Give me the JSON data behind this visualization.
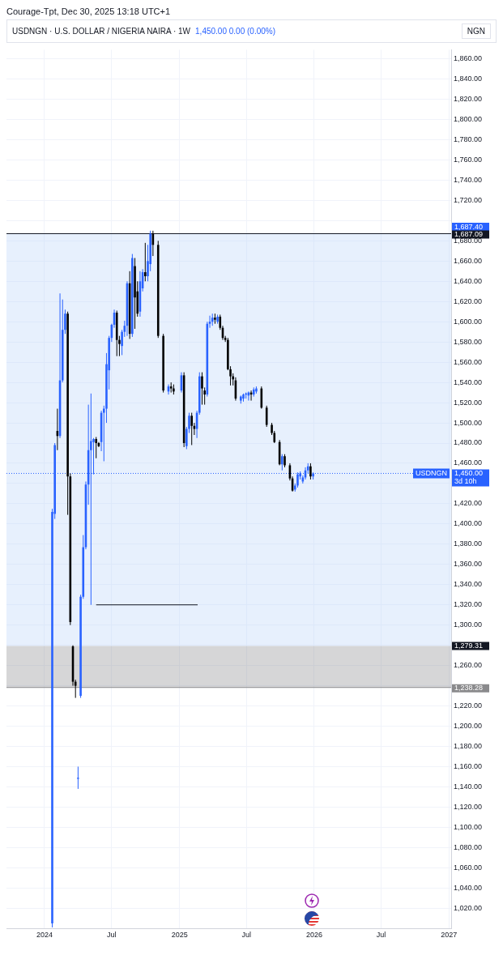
{
  "chart_data": {
    "type": "candlestick",
    "title": "USDNGN · U.S. DOLLAR / NIGERIA NAIRA · 1W",
    "subtitle": "1,450.00  0.00 (0.00%)",
    "ylabel": "NGN",
    "annotations": [
      "Courage-Tpt, Dec 30, 2025 13:18 UTC+1",
      "1,450.00",
      "3d 10h"
    ],
    "x": [
      "2024-01-22",
      "2024-01-29",
      "2024-02-05",
      "2024-02-12",
      "2024-02-19",
      "2024-02-26",
      "2024-03-04",
      "2024-03-11",
      "2024-03-18",
      "2024-03-25",
      "2024-04-01",
      "2024-04-08",
      "2024-04-15",
      "2024-04-22",
      "2024-04-29",
      "2024-05-06",
      "2024-05-13",
      "2024-05-20",
      "2024-05-27",
      "2024-06-03",
      "2024-06-10",
      "2024-06-17",
      "2024-06-24",
      "2024-07-01",
      "2024-07-08",
      "2024-07-15",
      "2024-07-22",
      "2024-07-29",
      "2024-08-05",
      "2024-08-12",
      "2024-08-19",
      "2024-08-26",
      "2024-09-02",
      "2024-09-09",
      "2024-09-16",
      "2024-09-23",
      "2024-09-30",
      "2024-10-07",
      "2024-10-14",
      "2024-10-21",
      "2024-11-04",
      "2024-11-18",
      "2024-12-02",
      "2024-12-09",
      "2024-12-16",
      "2025-01-06",
      "2025-01-13",
      "2025-01-20",
      "2025-01-27",
      "2025-02-03",
      "2025-02-10",
      "2025-02-17",
      "2025-02-24",
      "2025-03-03",
      "2025-03-10",
      "2025-03-17",
      "2025-03-24",
      "2025-03-31",
      "2025-04-07",
      "2025-04-14",
      "2025-04-21",
      "2025-04-28",
      "2025-05-05",
      "2025-05-12",
      "2025-05-19",
      "2025-05-26",
      "2025-06-02",
      "2025-06-16",
      "2025-06-23",
      "2025-06-30",
      "2025-07-07",
      "2025-07-14",
      "2025-07-21",
      "2025-07-28",
      "2025-08-11",
      "2025-08-25",
      "2025-09-08",
      "2025-09-15",
      "2025-09-29",
      "2025-10-06",
      "2025-10-13",
      "2025-10-27",
      "2025-11-03",
      "2025-11-10",
      "2025-11-17",
      "2025-11-24",
      "2025-12-01",
      "2025-12-08",
      "2025-12-15",
      "2025-12-22",
      "2025-12-29"
    ],
    "ohlc": [
      [
        1005,
        1415,
        1001,
        1412
      ],
      [
        1410,
        1480,
        1405,
        1478
      ],
      [
        1492,
        1514,
        1473,
        1487
      ],
      [
        1487,
        1628,
        1485,
        1542
      ],
      [
        1542,
        1622,
        1540,
        1592
      ],
      [
        1592,
        1612,
        1588,
        1608
      ],
      [
        1608,
        1610,
        1409,
        1447
      ],
      [
        1447,
        1450,
        1300,
        1303
      ],
      [
        1279,
        1280,
        1240,
        1244
      ],
      [
        1244,
        1246,
        1228,
        1240
      ],
      [
        1148,
        1160,
        1138,
        1149
      ],
      [
        1230,
        1330,
        1228,
        1328
      ],
      [
        1328,
        1389,
        1326,
        1377
      ],
      [
        1377,
        1442,
        1375,
        1439
      ],
      [
        1439,
        1518,
        1419,
        1473
      ],
      [
        1473,
        1529,
        1320,
        1482
      ],
      [
        1481,
        1485,
        1449,
        1484
      ],
      [
        1484,
        1486,
        1465,
        1480
      ],
      [
        1480,
        1481,
        1476,
        1477
      ],
      [
        1481,
        1512,
        1472,
        1510
      ],
      [
        1510,
        1517,
        1462,
        1514
      ],
      [
        1514,
        1569,
        1500,
        1558
      ],
      [
        1552,
        1586,
        1533,
        1584
      ],
      [
        1584,
        1598,
        1580,
        1597
      ],
      [
        1597,
        1612,
        1594,
        1609
      ],
      [
        1609,
        1611,
        1566,
        1582
      ],
      [
        1582,
        1586,
        1566,
        1578
      ],
      [
        1576,
        1592,
        1567,
        1590
      ],
      [
        1590,
        1601,
        1585,
        1596
      ],
      [
        1596,
        1640,
        1586,
        1638
      ],
      [
        1638,
        1650,
        1583,
        1588
      ],
      [
        1588,
        1667,
        1585,
        1663
      ],
      [
        1655,
        1663,
        1593,
        1624
      ],
      [
        1630,
        1640,
        1605,
        1608
      ],
      [
        1610,
        1650,
        1605,
        1640
      ],
      [
        1633,
        1652,
        1630,
        1649
      ],
      [
        1649,
        1678,
        1640,
        1645
      ],
      [
        1645,
        1676,
        1640,
        1660
      ],
      [
        1657,
        1690,
        1650,
        1687
      ],
      [
        1687,
        1690,
        1665,
        1676
      ],
      [
        1676,
        1680,
        1584,
        1586
      ],
      [
        1586,
        1588,
        1530,
        1532
      ],
      [
        1531,
        1538,
        1528,
        1536
      ],
      [
        1536,
        1540,
        1530,
        1534
      ],
      [
        1534,
        1538,
        1528,
        1531
      ],
      [
        1532,
        1550,
        1530,
        1547
      ],
      [
        1547,
        1550,
        1476,
        1480
      ],
      [
        1477,
        1496,
        1474,
        1494
      ],
      [
        1494,
        1510,
        1490,
        1507
      ],
      [
        1507,
        1510,
        1478,
        1497
      ],
      [
        1497,
        1500,
        1488,
        1494
      ],
      [
        1494,
        1512,
        1485,
        1510
      ],
      [
        1510,
        1550,
        1508,
        1546
      ],
      [
        1546,
        1550,
        1518,
        1534
      ],
      [
        1532,
        1535,
        1518,
        1528
      ],
      [
        1528,
        1600,
        1526,
        1598
      ],
      [
        1598,
        1606,
        1594,
        1600
      ],
      [
        1600,
        1608,
        1596,
        1604
      ],
      [
        1604,
        1608,
        1598,
        1602
      ],
      [
        1600,
        1607,
        1598,
        1605
      ],
      [
        1605,
        1607,
        1592,
        1594
      ],
      [
        1594,
        1596,
        1582,
        1584
      ],
      [
        1584,
        1586,
        1580,
        1582
      ],
      [
        1582,
        1584,
        1552,
        1553
      ],
      [
        1553,
        1556,
        1537,
        1546
      ],
      [
        1546,
        1549,
        1537,
        1543
      ],
      [
        1542,
        1545,
        1522,
        1524
      ],
      [
        1522,
        1527,
        1519,
        1526
      ],
      [
        1524,
        1529,
        1521,
        1528
      ],
      [
        1528,
        1530,
        1524,
        1529
      ],
      [
        1527,
        1531,
        1522,
        1530
      ],
      [
        1530,
        1532,
        1522,
        1528
      ],
      [
        1528,
        1535,
        1526,
        1533
      ],
      [
        1531,
        1536,
        1529,
        1534
      ],
      [
        1534,
        1536,
        1514,
        1515
      ],
      [
        1515,
        1517,
        1496,
        1498
      ],
      [
        1498,
        1500,
        1488,
        1490
      ],
      [
        1490,
        1492,
        1480,
        1481
      ],
      [
        1481,
        1483,
        1458,
        1459
      ],
      [
        1459,
        1469,
        1453,
        1467
      ],
      [
        1467,
        1469,
        1456,
        1458
      ],
      [
        1458,
        1460,
        1443,
        1445
      ],
      [
        1445,
        1447,
        1432,
        1433
      ],
      [
        1434,
        1440,
        1432,
        1438
      ],
      [
        1438,
        1451,
        1436,
        1449
      ],
      [
        1447,
        1452,
        1444,
        1450
      ],
      [
        1442,
        1448,
        1440,
        1446
      ],
      [
        1446,
        1456,
        1444,
        1453
      ],
      [
        1453,
        1460,
        1450,
        1457
      ],
      [
        1457,
        1460,
        1444,
        1447
      ],
      [
        1447,
        1451,
        1444,
        1450
      ]
    ],
    "series": [
      {
        "type": "line",
        "color": "#131722",
        "x": [
          "2024-05-20",
          "2025-02-19"
        ],
        "values": [
          1320,
          1320
        ]
      }
    ],
    "marker": "none",
    "xlim": [
      "2023-09-20",
      "2027-01-07"
    ],
    "xticks": [
      {
        "value": "2024-01-01",
        "label": "2024"
      },
      {
        "value": "2024-07-01",
        "label": "Jul"
      },
      {
        "value": "2025-01-01",
        "label": "2025"
      },
      {
        "value": "2025-07-01",
        "label": "Jul"
      },
      {
        "value": "2026-01-01",
        "label": "2026"
      },
      {
        "value": "2026-07-01",
        "label": "Jul"
      },
      {
        "value": "2027-01-01",
        "label": "2027"
      }
    ],
    "ylim": [
      1000,
      1869
    ],
    "yticks": [
      {
        "value": 1020,
        "label": "1,020.00"
      },
      {
        "value": 1040,
        "label": "1,040.00"
      },
      {
        "value": 1060,
        "label": "1,060.00"
      },
      {
        "value": 1080,
        "label": "1,080.00"
      },
      {
        "value": 1100,
        "label": "1,100.00"
      },
      {
        "value": 1120,
        "label": "1,120.00"
      },
      {
        "value": 1140,
        "label": "1,140.00"
      },
      {
        "value": 1160,
        "label": "1,160.00"
      },
      {
        "value": 1180,
        "label": "1,180.00"
      },
      {
        "value": 1200,
        "label": "1,200.00"
      },
      {
        "value": 1220,
        "label": "1,220.00"
      },
      {
        "value": 1240,
        "label": null
      },
      {
        "value": 1260,
        "label": "1,260.00"
      },
      {
        "value": 1280,
        "label": null
      },
      {
        "value": 1300,
        "label": "1,300.00"
      },
      {
        "value": 1320,
        "label": "1,320.00"
      },
      {
        "value": 1340,
        "label": "1,340.00"
      },
      {
        "value": 1360,
        "label": "1,360.00"
      },
      {
        "value": 1380,
        "label": "1,380.00"
      },
      {
        "value": 1400,
        "label": "1,400.00"
      },
      {
        "value": 1420,
        "label": "1,420.00"
      },
      {
        "value": 1440,
        "label": null
      },
      {
        "value": 1460,
        "label": "1,460.00"
      },
      {
        "value": 1480,
        "label": "1,480.00"
      },
      {
        "value": 1500,
        "label": "1,500.00"
      },
      {
        "value": 1520,
        "label": "1,520.00"
      },
      {
        "value": 1540,
        "label": "1,540.00"
      },
      {
        "value": 1560,
        "label": "1,560.00"
      },
      {
        "value": 1580,
        "label": "1,580.00"
      },
      {
        "value": 1600,
        "label": "1,600.00"
      },
      {
        "value": 1620,
        "label": "1,620.00"
      },
      {
        "value": 1640,
        "label": "1,640.00"
      },
      {
        "value": 1660,
        "label": "1,660.00"
      },
      {
        "value": 1680,
        "label": "1,680.00"
      },
      {
        "value": 1700,
        "label": null
      },
      {
        "value": 1720,
        "label": "1,720.00"
      },
      {
        "value": 1740,
        "label": "1,740.00"
      },
      {
        "value": 1760,
        "label": "1,760.00"
      },
      {
        "value": 1780,
        "label": "1,780.00"
      },
      {
        "value": 1800,
        "label": "1,800.00"
      },
      {
        "value": 1820,
        "label": "1,820.00"
      },
      {
        "value": 1840,
        "label": "1,840.00"
      },
      {
        "value": 1860,
        "label": "1,860.00"
      }
    ],
    "ref_lines": [
      {
        "axis": "y",
        "value": 1687.09,
        "label": "1,687.09",
        "color": "#131722",
        "line_style": "solid"
      },
      {
        "axis": "y",
        "value": 1450,
        "label": "USDNGN",
        "color": "#2962ff",
        "line_style": "dotted"
      },
      {
        "axis": "y",
        "value": 1238.28,
        "label": "1,238.28",
        "color": "#8a8a8c",
        "line_style": "solid"
      }
    ],
    "bands": [
      {
        "axis": "y",
        "from": 1279.31,
        "to": 1687.4,
        "label": "1,687.40",
        "color": "#bbd4f8"
      },
      {
        "axis": "y",
        "from": 1238.28,
        "to": 1279.31,
        "label": "1,279.31",
        "color": "#8a8a8c"
      }
    ],
    "grid": true,
    "legend": false
  }
}
